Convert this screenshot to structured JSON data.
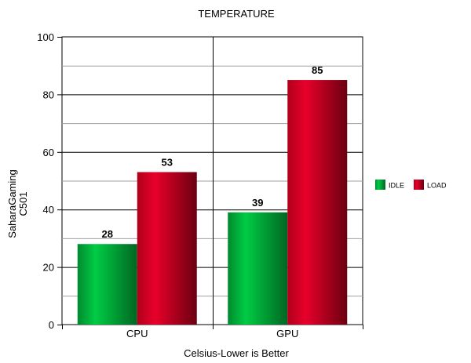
{
  "chart_data": {
    "type": "bar",
    "title": "TEMPERATURE",
    "xlabel": "Celsius-Lower is Better",
    "ylabel": [
      "SaharaGaming",
      "C501"
    ],
    "categories": [
      "CPU",
      "GPU"
    ],
    "series": [
      {
        "name": "IDLE",
        "values": [
          28,
          39
        ],
        "color": "#00b33c"
      },
      {
        "name": "LOAD",
        "values": [
          53,
          85
        ],
        "color": "#c8001e"
      }
    ],
    "ylim": [
      0,
      100
    ],
    "yticks": [
      0,
      20,
      40,
      60,
      80,
      100
    ],
    "grid": true,
    "legend_position": "right"
  }
}
